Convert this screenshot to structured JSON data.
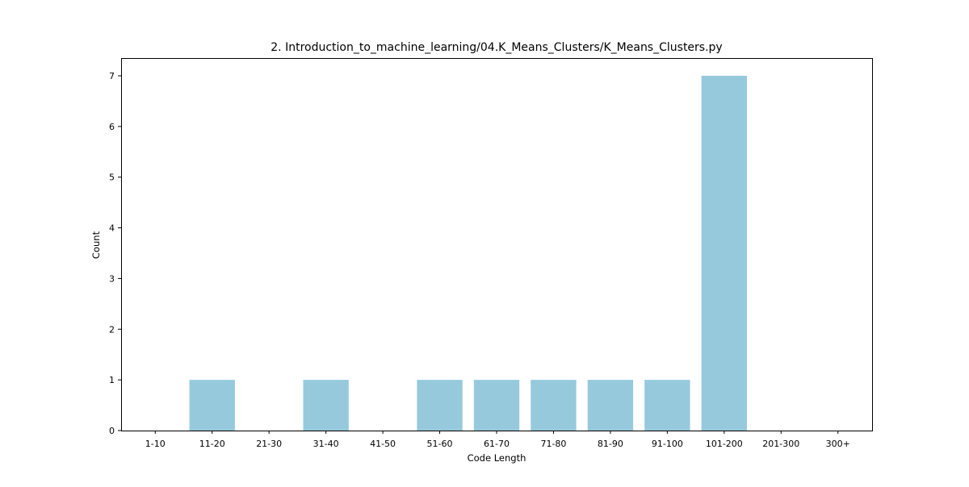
{
  "chart_data": {
    "type": "bar",
    "title": "2. Introduction_to_machine_learning/04.K_Means_Clusters/K_Means_Clusters.py",
    "xlabel": "Code Length",
    "ylabel": "Count",
    "categories": [
      "1-10",
      "11-20",
      "21-30",
      "31-40",
      "41-50",
      "51-60",
      "61-70",
      "71-80",
      "81-90",
      "91-100",
      "101-200",
      "201-300",
      "300+"
    ],
    "values": [
      0,
      1,
      0,
      1,
      0,
      1,
      1,
      1,
      1,
      1,
      7,
      0,
      0
    ],
    "ylim": [
      0,
      7.35
    ],
    "yticks": [
      0,
      1,
      2,
      3,
      4,
      5,
      6,
      7
    ],
    "bar_color": "#96c9dc",
    "grid": false,
    "legend": "none"
  }
}
